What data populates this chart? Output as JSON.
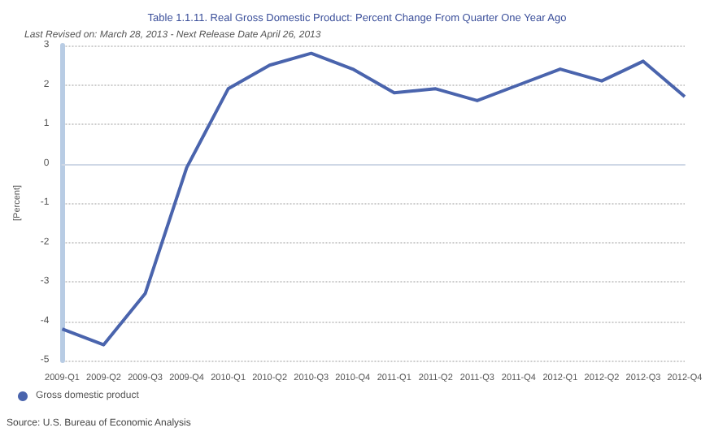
{
  "chart_data": {
    "type": "line",
    "title": "Table 1.1.11. Real Gross Domestic Product: Percent Change From Quarter One Year Ago",
    "subtitle": "Last Revised on: March 28, 2013 - Next Release Date April 26, 2013",
    "ylabel": "[Percent]",
    "categories": [
      "2009-Q1",
      "2009-Q2",
      "2009-Q3",
      "2009-Q4",
      "2010-Q1",
      "2010-Q2",
      "2010-Q3",
      "2010-Q4",
      "2011-Q1",
      "2011-Q2",
      "2011-Q3",
      "2011-Q4",
      "2012-Q1",
      "2012-Q2",
      "2012-Q3",
      "2012-Q4"
    ],
    "series": [
      {
        "name": "Gross domestic product",
        "color": "#4a64ad",
        "values": [
          -4.2,
          -4.6,
          -3.3,
          -0.1,
          1.9,
          2.5,
          2.8,
          2.4,
          1.8,
          1.9,
          1.6,
          2.0,
          2.4,
          2.1,
          2.6,
          1.7
        ]
      }
    ],
    "ylim": [
      -5,
      3
    ],
    "yticks": [
      -5,
      -4,
      -3,
      -2,
      -1,
      0,
      1,
      2,
      3
    ],
    "grid": "y",
    "legend": "bottom left",
    "marker": "none",
    "line_style": "solid",
    "annotations": [
      "Source: U.S. Bureau of Economic Analysis"
    ]
  }
}
